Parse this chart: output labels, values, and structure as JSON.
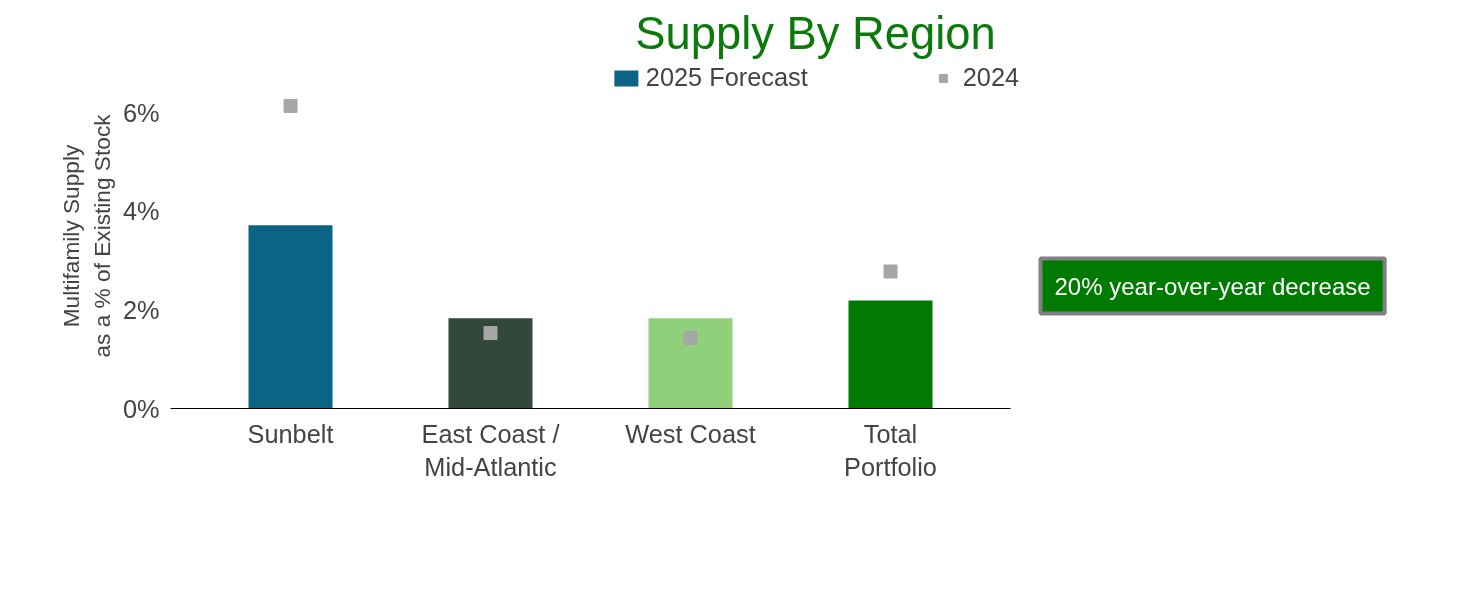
{
  "chart_data": {
    "type": "bar",
    "title": "Supply By Region",
    "ylabel": "Multifamily Supply\nas a % of Existing Stock",
    "categories": [
      "Sunbelt",
      "East Coast /\nMid-Atlantic",
      "West Coast",
      "Total\nPortfolio"
    ],
    "ylim": [
      0,
      7
    ],
    "yticks": [
      {
        "value": 0,
        "label": "0%"
      },
      {
        "value": 2,
        "label": "2%"
      },
      {
        "value": 4,
        "label": "4%"
      },
      {
        "value": 6,
        "label": "6%"
      }
    ],
    "series": [
      {
        "name": "2025 Forecast",
        "colors": [
          "#0b6484",
          "#31483b",
          "#90d07a",
          "#007a00"
        ],
        "values": [
          3.72,
          1.83,
          1.83,
          2.19
        ]
      },
      {
        "name": "2024",
        "type": "scatter",
        "marker": "square",
        "color": "#a6a6a6",
        "values": [
          6.14,
          1.53,
          1.43,
          2.78
        ]
      }
    ],
    "annotations": [
      "20% year-over-year decrease"
    ],
    "grid": false,
    "legend": "top"
  }
}
